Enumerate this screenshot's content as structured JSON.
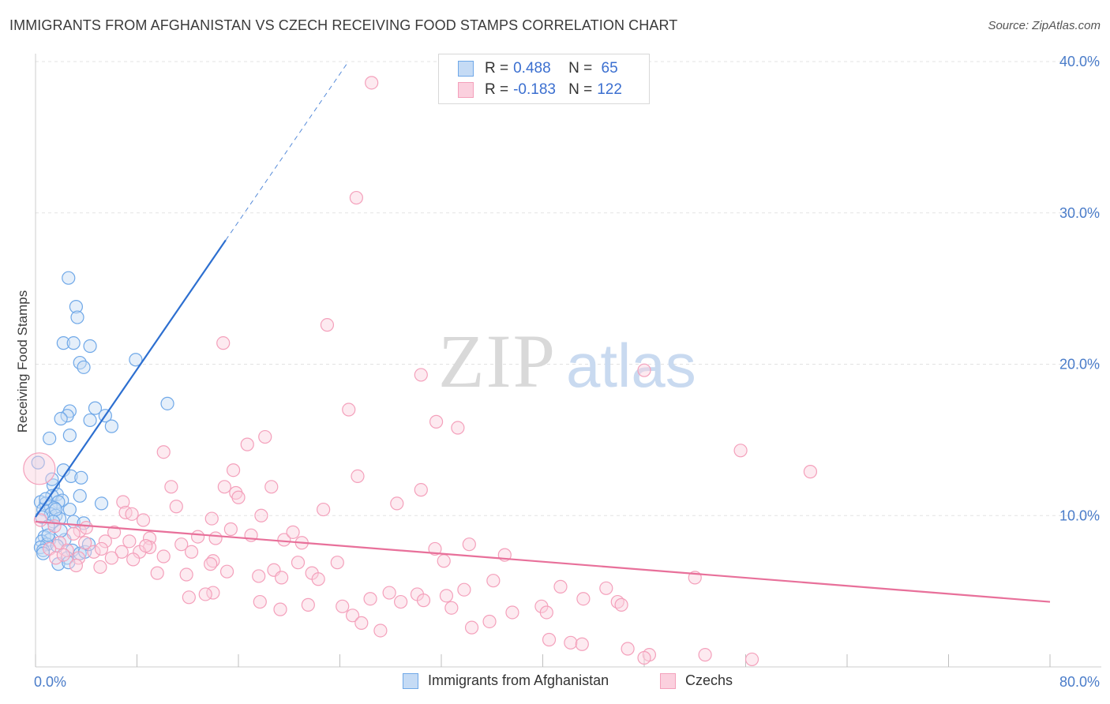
{
  "title": "IMMIGRANTS FROM AFGHANISTAN VS CZECH RECEIVING FOOD STAMPS CORRELATION CHART",
  "source": "Source: ZipAtlas.com",
  "watermark": {
    "zip": "ZIP",
    "atlas": "atlas"
  },
  "legend": {
    "rows": [
      {
        "r_label": "R = ",
        "r_value": "0.488",
        "n_label": "N = ",
        "n_value": " 65",
        "color": "#6fa8e8"
      },
      {
        "r_label": "R = ",
        "r_value": "-0.183",
        "n_label": "N = ",
        "n_value": "122",
        "color": "#f4a0bb"
      }
    ]
  },
  "bottom_legend": [
    {
      "label": "Immigrants from Afghanistan",
      "color": "#6fa8e8"
    },
    {
      "label": "Czechs",
      "color": "#f4a0bb"
    }
  ],
  "chart_data": {
    "type": "scatter",
    "title": "IMMIGRANTS FROM AFGHANISTAN VS CZECH RECEIVING FOOD STAMPS CORRELATION CHART",
    "xlabel": "",
    "ylabel": "Receiving Food Stamps",
    "xlim": [
      0,
      80
    ],
    "ylim": [
      0,
      40
    ],
    "x_tick_labels": [
      "0.0%",
      "80.0%"
    ],
    "y_ticks": [
      10,
      20,
      30,
      40
    ],
    "y_tick_labels": [
      "10.0%",
      "20.0%",
      "30.0%",
      "40.0%"
    ],
    "grid": true,
    "legend_position": "top-center",
    "series": [
      {
        "name": "Immigrants from Afghanistan",
        "color": "#6fa8e8",
        "trend_color": "#2d6fd0",
        "trend": {
          "x0": 0.0,
          "y0": 9.9,
          "x1": 15.0,
          "y1": 28.2,
          "dashed_to_x": 25.0
        },
        "points": [
          [
            2.6,
            25.7
          ],
          [
            3.2,
            23.8
          ],
          [
            3.3,
            23.1
          ],
          [
            2.2,
            21.4
          ],
          [
            3.0,
            21.4
          ],
          [
            4.3,
            21.2
          ],
          [
            3.5,
            20.1
          ],
          [
            3.8,
            19.8
          ],
          [
            7.9,
            20.3
          ],
          [
            10.4,
            17.4
          ],
          [
            4.7,
            17.1
          ],
          [
            5.5,
            16.6
          ],
          [
            2.7,
            16.9
          ],
          [
            2.5,
            16.6
          ],
          [
            2.0,
            16.4
          ],
          [
            4.3,
            16.3
          ],
          [
            6.0,
            15.9
          ],
          [
            1.1,
            15.1
          ],
          [
            2.7,
            15.3
          ],
          [
            0.2,
            13.5
          ],
          [
            2.2,
            13.0
          ],
          [
            2.8,
            12.6
          ],
          [
            3.6,
            12.5
          ],
          [
            1.4,
            12.0
          ],
          [
            1.7,
            11.4
          ],
          [
            3.5,
            11.3
          ],
          [
            1.3,
            11.3
          ],
          [
            2.1,
            11.0
          ],
          [
            1.8,
            10.9
          ],
          [
            0.4,
            10.9
          ],
          [
            0.8,
            10.8
          ],
          [
            5.2,
            10.8
          ],
          [
            1.2,
            10.6
          ],
          [
            1.5,
            10.5
          ],
          [
            0.6,
            10.4
          ],
          [
            2.7,
            10.4
          ],
          [
            1.2,
            10.1
          ],
          [
            1.6,
            10.0
          ],
          [
            1.9,
            9.8
          ],
          [
            0.5,
            9.9
          ],
          [
            1.4,
            9.6
          ],
          [
            3.0,
            9.6
          ],
          [
            1.0,
            9.3
          ],
          [
            3.8,
            9.5
          ],
          [
            0.7,
            8.6
          ],
          [
            2.3,
            8.4
          ],
          [
            1.1,
            8.4
          ],
          [
            0.5,
            8.3
          ],
          [
            0.9,
            8.1
          ],
          [
            0.4,
            7.9
          ],
          [
            1.7,
            8.0
          ],
          [
            2.9,
            7.7
          ],
          [
            3.5,
            7.5
          ],
          [
            0.6,
            7.7
          ],
          [
            0.6,
            7.5
          ],
          [
            2.5,
            7.2
          ],
          [
            1.8,
            6.8
          ],
          [
            2.6,
            6.9
          ],
          [
            3.9,
            7.6
          ],
          [
            4.2,
            8.1
          ],
          [
            1.0,
            8.7
          ],
          [
            2.0,
            9.0
          ],
          [
            1.3,
            12.4
          ],
          [
            0.8,
            11.1
          ],
          [
            1.6,
            10.4
          ]
        ]
      },
      {
        "name": "Czechs",
        "color": "#f4a0bb",
        "trend_color": "#e8709a",
        "trend": {
          "x0": 0.0,
          "y0": 9.6,
          "x1": 80.0,
          "y1": 4.3
        },
        "points": [
          [
            0.3,
            13.1
          ],
          [
            26.5,
            38.6
          ],
          [
            25.3,
            31.0
          ],
          [
            23.0,
            22.6
          ],
          [
            14.8,
            21.4
          ],
          [
            48.0,
            19.6
          ],
          [
            30.4,
            19.3
          ],
          [
            24.7,
            17.0
          ],
          [
            31.6,
            16.2
          ],
          [
            33.3,
            15.8
          ],
          [
            18.1,
            15.2
          ],
          [
            16.7,
            14.7
          ],
          [
            10.1,
            14.2
          ],
          [
            55.6,
            14.3
          ],
          [
            61.1,
            12.9
          ],
          [
            15.6,
            13.0
          ],
          [
            25.4,
            12.6
          ],
          [
            10.7,
            11.9
          ],
          [
            14.9,
            11.9
          ],
          [
            18.6,
            11.9
          ],
          [
            30.4,
            11.7
          ],
          [
            15.8,
            11.5
          ],
          [
            16.0,
            11.2
          ],
          [
            6.9,
            10.9
          ],
          [
            28.5,
            10.8
          ],
          [
            11.1,
            10.6
          ],
          [
            22.7,
            10.4
          ],
          [
            7.1,
            10.2
          ],
          [
            7.6,
            10.1
          ],
          [
            17.8,
            10.0
          ],
          [
            8.5,
            9.7
          ],
          [
            13.9,
            9.8
          ],
          [
            0.4,
            9.7
          ],
          [
            1.5,
            9.3
          ],
          [
            3.5,
            9.0
          ],
          [
            6.2,
            8.9
          ],
          [
            17.0,
            8.7
          ],
          [
            9.0,
            8.5
          ],
          [
            12.8,
            8.6
          ],
          [
            14.2,
            8.5
          ],
          [
            19.6,
            8.4
          ],
          [
            21.0,
            8.2
          ],
          [
            1.9,
            8.2
          ],
          [
            3.9,
            8.2
          ],
          [
            5.5,
            8.3
          ],
          [
            7.4,
            8.3
          ],
          [
            11.5,
            8.1
          ],
          [
            34.2,
            8.1
          ],
          [
            31.5,
            7.8
          ],
          [
            9.0,
            7.9
          ],
          [
            1.1,
            7.8
          ],
          [
            2.5,
            7.7
          ],
          [
            4.6,
            7.6
          ],
          [
            6.8,
            7.6
          ],
          [
            8.2,
            7.6
          ],
          [
            12.3,
            7.6
          ],
          [
            37.0,
            7.4
          ],
          [
            10.1,
            7.3
          ],
          [
            1.6,
            7.2
          ],
          [
            3.4,
            7.2
          ],
          [
            7.7,
            7.1
          ],
          [
            14.0,
            7.0
          ],
          [
            20.7,
            6.9
          ],
          [
            23.8,
            6.9
          ],
          [
            32.2,
            7.0
          ],
          [
            3.2,
            6.7
          ],
          [
            5.1,
            6.6
          ],
          [
            13.8,
            6.8
          ],
          [
            18.8,
            6.4
          ],
          [
            15.1,
            6.3
          ],
          [
            11.9,
            6.1
          ],
          [
            21.8,
            6.2
          ],
          [
            17.6,
            6.0
          ],
          [
            9.6,
            6.2
          ],
          [
            19.4,
            5.9
          ],
          [
            22.3,
            5.8
          ],
          [
            52.0,
            5.9
          ],
          [
            36.1,
            5.7
          ],
          [
            41.4,
            5.3
          ],
          [
            45.0,
            5.2
          ],
          [
            33.8,
            5.1
          ],
          [
            27.9,
            4.9
          ],
          [
            30.1,
            4.8
          ],
          [
            14.0,
            4.9
          ],
          [
            13.4,
            4.8
          ],
          [
            32.4,
            4.7
          ],
          [
            26.4,
            4.5
          ],
          [
            28.8,
            4.3
          ],
          [
            30.6,
            4.4
          ],
          [
            43.2,
            4.5
          ],
          [
            45.9,
            4.3
          ],
          [
            46.2,
            4.1
          ],
          [
            39.9,
            4.0
          ],
          [
            17.7,
            4.3
          ],
          [
            21.5,
            4.1
          ],
          [
            24.2,
            4.0
          ],
          [
            32.8,
            3.9
          ],
          [
            37.6,
            3.6
          ],
          [
            40.3,
            3.6
          ],
          [
            19.3,
            3.8
          ],
          [
            25.0,
            3.4
          ],
          [
            35.8,
            3.0
          ],
          [
            27.2,
            2.4
          ],
          [
            34.4,
            2.6
          ],
          [
            25.7,
            2.9
          ],
          [
            40.5,
            1.8
          ],
          [
            42.2,
            1.6
          ],
          [
            43.1,
            1.5
          ],
          [
            46.7,
            1.2
          ],
          [
            48.4,
            0.8
          ],
          [
            52.8,
            0.8
          ],
          [
            56.5,
            0.5
          ],
          [
            48.0,
            0.6
          ],
          [
            12.1,
            4.6
          ],
          [
            5.2,
            7.8
          ],
          [
            8.7,
            8.0
          ],
          [
            2.2,
            7.4
          ],
          [
            6.0,
            7.2
          ],
          [
            3.0,
            8.8
          ],
          [
            4.0,
            9.2
          ],
          [
            15.4,
            9.1
          ],
          [
            20.3,
            8.9
          ]
        ]
      }
    ]
  }
}
